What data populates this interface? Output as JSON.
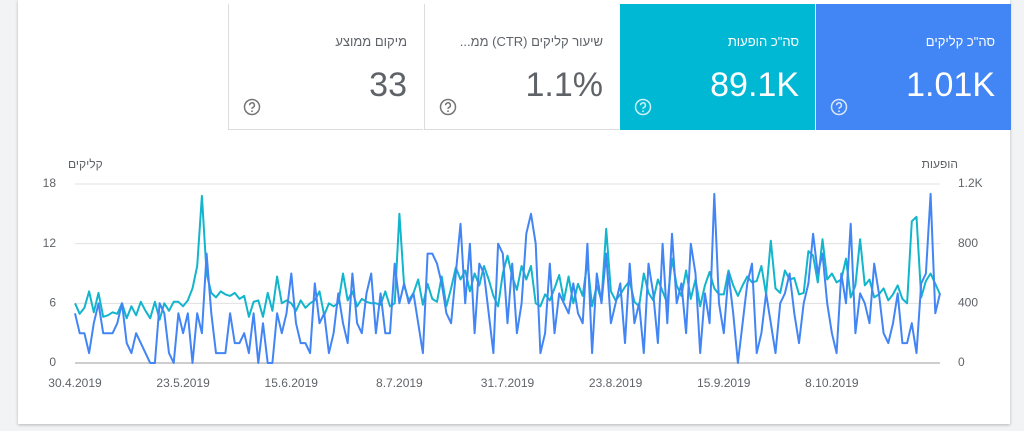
{
  "cards": [
    {
      "title": "סה\"כ קליקים",
      "value": "1.01K",
      "color": "#4285f4"
    },
    {
      "title": "סה\"כ הופעות",
      "value": "89.1K",
      "color": "#00b8d4"
    },
    {
      "title": "שיעור קליקים (CTR) ממ...",
      "value": "1.1%",
      "color": null
    },
    {
      "title": "מיקום ממוצע",
      "value": "33",
      "color": null
    }
  ],
  "chart_data": {
    "type": "line",
    "y_label": "קליקים",
    "y2_label": "הופעות",
    "categories": [
      "30.4.2019",
      null,
      null,
      null,
      null,
      null,
      null,
      null,
      null,
      null,
      null,
      null,
      null,
      null,
      null,
      null,
      null,
      null,
      null,
      null,
      null,
      null,
      null,
      "23.5.2019",
      null,
      null,
      null,
      null,
      null,
      null,
      null,
      null,
      null,
      null,
      null,
      null,
      null,
      null,
      null,
      null,
      null,
      null,
      null,
      null,
      null,
      null,
      "15.6.2019",
      null,
      null,
      null,
      null,
      null,
      null,
      null,
      null,
      null,
      null,
      null,
      null,
      null,
      null,
      null,
      null,
      null,
      null,
      null,
      null,
      null,
      null,
      "8.7.2019",
      null,
      null,
      null,
      null,
      null,
      null,
      null,
      null,
      null,
      null,
      null,
      null,
      null,
      null,
      null,
      null,
      null,
      null,
      null,
      null,
      null,
      null,
      "31.7.2019",
      null,
      null,
      null,
      null,
      null,
      null,
      null,
      null,
      null,
      null,
      null,
      null,
      null,
      null,
      null,
      null,
      null,
      null,
      null,
      null,
      null,
      null,
      "23.8.2019",
      null,
      null,
      null,
      null,
      null,
      null,
      null,
      null,
      null,
      null,
      null,
      null,
      null,
      null,
      null,
      null,
      null,
      null,
      null,
      null,
      null,
      null,
      "15.9.2019",
      null,
      null,
      null,
      null,
      null,
      null,
      null,
      null,
      null,
      null,
      null,
      null,
      null,
      null,
      null,
      null,
      null,
      null,
      null,
      null,
      null,
      null,
      "8.10.2019",
      null,
      null,
      null,
      null,
      null,
      null,
      null,
      null,
      null,
      null,
      null,
      null,
      null,
      null,
      null,
      null,
      null,
      null,
      null,
      null,
      null,
      null,
      null
    ],
    "series": [
      {
        "name": "קליקים",
        "color": "#4285f4",
        "axis": "y",
        "values": [
          5,
          3,
          3,
          1,
          4,
          6,
          3,
          3,
          3,
          4,
          6,
          2,
          1,
          3,
          2,
          1,
          0,
          0,
          6,
          5,
          1,
          0,
          5,
          3,
          5,
          0,
          5,
          3,
          11,
          5,
          1,
          1,
          1,
          5,
          2,
          2,
          3,
          1,
          5,
          0,
          4,
          0,
          0,
          5,
          3,
          5,
          9,
          4,
          2,
          2,
          1,
          8,
          4,
          5,
          1,
          3,
          7,
          4,
          2,
          9,
          4,
          3,
          7,
          9,
          3,
          7,
          3,
          3,
          10,
          6,
          8,
          6,
          7,
          4,
          1,
          11,
          11,
          10,
          8,
          5,
          4,
          9,
          14,
          6,
          12,
          3,
          10,
          9,
          5,
          1,
          12,
          11,
          4,
          10,
          3,
          6,
          13,
          15,
          12,
          1,
          3,
          10,
          3,
          7,
          6,
          5,
          8,
          5,
          4,
          12,
          1,
          9,
          6,
          11,
          4,
          6,
          8,
          2,
          10,
          4,
          6,
          1,
          10,
          7,
          2,
          12,
          4,
          13,
          6,
          8,
          3,
          12,
          9,
          1,
          7,
          4,
          17,
          6,
          3,
          9,
          5,
          0,
          4,
          8,
          10,
          1,
          3,
          7,
          4,
          1,
          6,
          7,
          9,
          5,
          2,
          6,
          8,
          13,
          9,
          11,
          6,
          3,
          1,
          9,
          6,
          14,
          3,
          7,
          6,
          4,
          10,
          7,
          3,
          2,
          4,
          7,
          2,
          2,
          4,
          1,
          8,
          9,
          17,
          5,
          7
        ]
      },
      {
        "name": "הופעות",
        "color": "#12b5cb",
        "axis": "y2",
        "values": [
          400,
          330,
          370,
          480,
          340,
          470,
          310,
          320,
          340,
          330,
          400,
          300,
          380,
          320,
          410,
          350,
          300,
          410,
          290,
          400,
          350,
          410,
          410,
          380,
          420,
          500,
          650,
          1120,
          600,
          470,
          440,
          480,
          460,
          450,
          470,
          430,
          450,
          310,
          410,
          420,
          310,
          470,
          350,
          580,
          400,
          420,
          400,
          350,
          420,
          370,
          400,
          420,
          480,
          320,
          400,
          380,
          400,
          600,
          420,
          480,
          380,
          430,
          410,
          400,
          400,
          390,
          480,
          380,
          400,
          1000,
          520,
          420,
          470,
          560,
          390,
          530,
          430,
          410,
          580,
          380,
          500,
          640,
          560,
          620,
          480,
          600,
          520,
          650,
          560,
          450,
          380,
          600,
          720,
          580,
          490,
          650,
          560,
          650,
          400,
          380,
          460,
          420,
          500,
          590,
          420,
          580,
          400,
          530,
          450,
          680,
          380,
          520,
          420,
          900,
          480,
          420,
          460,
          510,
          550,
          410,
          380,
          600,
          470,
          420,
          560,
          480,
          400,
          700,
          520,
          450,
          620,
          430,
          560,
          380,
          520,
          610,
          500,
          460,
          460,
          620,
          520,
          450,
          520,
          580,
          540,
          550,
          650,
          460,
          820,
          500,
          470,
          620,
          560,
          570,
          460,
          470,
          750,
          720,
          540,
          830,
          560,
          600,
          540,
          560,
          700,
          440,
          520,
          830,
          520,
          560,
          440,
          460,
          500,
          420,
          460,
          520,
          430,
          400,
          950,
          980,
          440,
          550,
          600,
          530,
          460
        ]
      }
    ],
    "ylim": [
      0,
      18
    ],
    "yticks": [
      0,
      6,
      12,
      18
    ],
    "y2lim": [
      0,
      1200
    ],
    "y2ticks": [
      0,
      400,
      800,
      {
        "value": 1200,
        "label": "1.2K"
      }
    ],
    "grid": true
  }
}
